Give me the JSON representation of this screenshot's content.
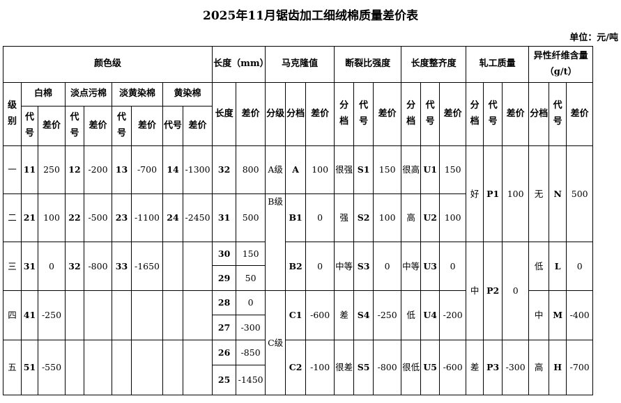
{
  "title": "2025年11月锯齿加工细绒棉质量差价表",
  "unit": "单位：元/吨",
  "header": {
    "color_grade": "颜色级",
    "length_mm": "长度（mm）",
    "micronaire": "马克隆值",
    "strength": "断裂比强度",
    "uniformity": "长度整齐度",
    "ginning": "轧工质量",
    "foreign_fiber": "异性纤维含量（g/t）",
    "grade_label": "级别",
    "white": "白棉",
    "light_spotted": "淡点污棉",
    "light_tinged": "淡黄染棉",
    "tinged": "黄染棉",
    "code": "代号",
    "diff": "差价",
    "length": "长度",
    "grade": "分级",
    "bin": "分档"
  },
  "color_rows": [
    {
      "grade": "一",
      "cells": [
        "11",
        "250",
        "12",
        "-200",
        "13",
        "-700",
        "14",
        "-1300"
      ]
    },
    {
      "grade": "二",
      "cells": [
        "21",
        "100",
        "22",
        "-500",
        "23",
        "-1100",
        "24",
        "-2450"
      ]
    },
    {
      "grade": "三",
      "cells": [
        "31",
        "0",
        "32",
        "-800",
        "33",
        "-1650",
        "",
        ""
      ]
    },
    {
      "grade": "四",
      "cells": [
        "41",
        "-250",
        "",
        "",
        "",
        "",
        "",
        ""
      ]
    },
    {
      "grade": "五",
      "cells": [
        "51",
        "-550",
        "",
        "",
        "",
        "",
        "",
        ""
      ]
    }
  ],
  "length_rows": [
    [
      "32",
      "800"
    ],
    [
      "31",
      "500"
    ],
    [
      "30",
      "150"
    ],
    [
      "29",
      "50"
    ],
    [
      "28",
      "0"
    ],
    [
      "27",
      "-300"
    ],
    [
      "26",
      "-850"
    ],
    [
      "25",
      "-1450"
    ]
  ],
  "micronaire": {
    "grades": [
      "A级",
      "B级",
      "C级"
    ],
    "rows": [
      [
        "A",
        "100"
      ],
      [
        "B1",
        "0"
      ],
      [
        "B2",
        "0"
      ],
      [
        "C1",
        "-600"
      ],
      [
        "C2",
        "-100"
      ]
    ]
  },
  "strength_rows": [
    [
      "很强",
      "S1",
      "150"
    ],
    [
      "强",
      "S2",
      "100"
    ],
    [
      "中等",
      "S3",
      "0"
    ],
    [
      "差",
      "S4",
      "-250"
    ],
    [
      "很差",
      "S5",
      "-800"
    ]
  ],
  "uniformity_rows": [
    [
      "很高",
      "U1",
      "150"
    ],
    [
      "高",
      "U2",
      "100"
    ],
    [
      "中等",
      "U3",
      "0"
    ],
    [
      "低",
      "U4",
      "-200"
    ],
    [
      "很低",
      "U5",
      "-600"
    ]
  ],
  "ginning_rows": [
    [
      "好",
      "P1",
      "100"
    ],
    [
      "中",
      "P2",
      "0"
    ],
    [
      "差",
      "P3",
      "-300"
    ]
  ],
  "foreign_fiber_rows": [
    [
      "无",
      "N",
      "500"
    ],
    [
      "低",
      "L",
      "0"
    ],
    [
      "中",
      "M",
      "-400"
    ],
    [
      "高",
      "H",
      "-700"
    ]
  ]
}
